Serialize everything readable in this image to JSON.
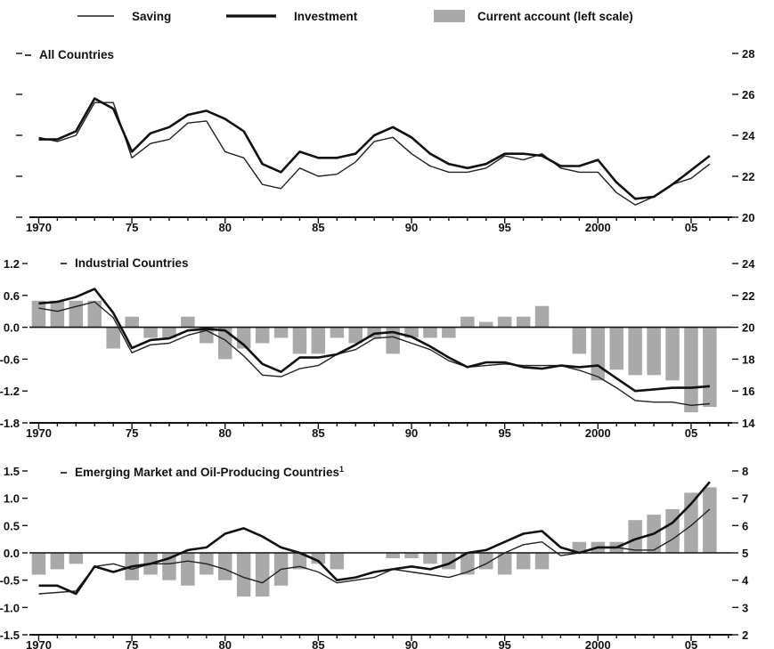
{
  "legend": {
    "saving": "Saving",
    "investment": "Investment",
    "current_account": "Current account (left scale)"
  },
  "colors": {
    "saving": "#222222",
    "investment": "#111111",
    "current_account": "#a9a9a9",
    "axis": "#111111"
  },
  "chart_data": [
    {
      "type": "line",
      "title": "All Countries",
      "x": [
        1970,
        1971,
        1972,
        1973,
        1974,
        1975,
        1976,
        1977,
        1978,
        1979,
        1980,
        1981,
        1982,
        1983,
        1984,
        1985,
        1986,
        1987,
        1988,
        1989,
        1990,
        1991,
        1992,
        1993,
        1994,
        1995,
        1996,
        1997,
        1998,
        1999,
        2000,
        2001,
        2002,
        2003,
        2004,
        2005,
        2006
      ],
      "xlim": [
        1969.5,
        2007.2
      ],
      "x_ticks": [
        1970,
        1975,
        1980,
        1985,
        1990,
        1995,
        2000,
        2005
      ],
      "x_tick_labels": [
        "1970",
        "75",
        "80",
        "85",
        "90",
        "95",
        "2000",
        "05"
      ],
      "yright_lim": [
        20,
        28
      ],
      "yright_ticks": [
        20,
        22,
        24,
        26,
        28
      ],
      "yright_tick_labels": [
        "20",
        "22",
        "24",
        "26",
        "28"
      ],
      "series": [
        {
          "name": "Saving",
          "axis": "right",
          "values": [
            23.9,
            23.7,
            24.0,
            25.6,
            25.6,
            22.9,
            23.6,
            23.8,
            24.6,
            24.7,
            23.2,
            22.9,
            21.6,
            21.4,
            22.4,
            22.0,
            22.1,
            22.7,
            23.7,
            23.9,
            23.1,
            22.5,
            22.2,
            22.2,
            22.4,
            23.0,
            22.8,
            23.1,
            22.4,
            22.2,
            22.2,
            21.2,
            20.6,
            21.0,
            21.6,
            21.9,
            22.6
          ]
        },
        {
          "name": "Investment",
          "axis": "right",
          "values": [
            23.8,
            23.8,
            24.2,
            25.8,
            25.3,
            23.2,
            24.1,
            24.4,
            25.0,
            25.2,
            24.8,
            24.2,
            22.6,
            22.2,
            23.2,
            22.9,
            22.9,
            23.1,
            24.0,
            24.4,
            23.9,
            23.1,
            22.6,
            22.4,
            22.6,
            23.1,
            23.1,
            23.0,
            22.5,
            22.5,
            22.8,
            21.7,
            20.9,
            21.0,
            21.6,
            22.3,
            23.0
          ]
        }
      ]
    },
    {
      "type": "bar",
      "title": "Industrial Countries",
      "x": [
        1970,
        1971,
        1972,
        1973,
        1974,
        1975,
        1976,
        1977,
        1978,
        1979,
        1980,
        1981,
        1982,
        1983,
        1984,
        1985,
        1986,
        1987,
        1988,
        1989,
        1990,
        1991,
        1992,
        1993,
        1994,
        1995,
        1996,
        1997,
        1998,
        1999,
        2000,
        2001,
        2002,
        2003,
        2004,
        2005,
        2006
      ],
      "xlim": [
        1969.5,
        2007.2
      ],
      "x_ticks": [
        1970,
        1975,
        1980,
        1985,
        1990,
        1995,
        2000,
        2005
      ],
      "x_tick_labels": [
        "1970",
        "75",
        "80",
        "85",
        "90",
        "95",
        "2000",
        "05"
      ],
      "yleft_lim": [
        -1.8,
        1.2
      ],
      "yleft_ticks": [
        -1.8,
        -1.2,
        -0.6,
        0.0,
        0.6,
        1.2
      ],
      "yleft_tick_labels": [
        "-1.8",
        "-1.2",
        "-0.6",
        "0.0",
        "0.6",
        "1.2"
      ],
      "yright_lim": [
        14,
        24
      ],
      "yright_ticks": [
        14,
        16,
        18,
        20,
        22,
        24
      ],
      "yright_tick_labels": [
        "14",
        "16",
        "18",
        "20",
        "22",
        "24"
      ],
      "series": [
        {
          "name": "Current account (left scale)",
          "axis": "left",
          "kind": "bar",
          "values": [
            0.5,
            0.5,
            0.5,
            0.5,
            -0.4,
            0.2,
            -0.2,
            -0.2,
            0.2,
            -0.3,
            -0.6,
            -0.4,
            -0.3,
            -0.2,
            -0.5,
            -0.5,
            -0.2,
            -0.3,
            -0.2,
            -0.5,
            -0.2,
            -0.2,
            -0.2,
            0.2,
            0.1,
            0.2,
            0.2,
            0.4,
            0.0,
            -0.5,
            -1.0,
            -0.8,
            -0.9,
            -0.9,
            -1.0,
            -1.6,
            -1.5
          ]
        },
        {
          "name": "Saving",
          "axis": "right",
          "kind": "line",
          "values": [
            21.2,
            21.0,
            21.3,
            21.6,
            20.6,
            18.4,
            18.9,
            19.0,
            19.5,
            19.8,
            19.2,
            18.2,
            17.0,
            16.9,
            17.4,
            17.6,
            18.3,
            18.6,
            19.3,
            19.4,
            19.0,
            18.6,
            17.9,
            17.5,
            17.6,
            17.7,
            17.6,
            17.6,
            17.6,
            17.3,
            16.9,
            16.2,
            15.4,
            15.3,
            15.3,
            15.1,
            15.2
          ]
        },
        {
          "name": "Investment",
          "axis": "right",
          "kind": "line",
          "values": [
            21.5,
            21.6,
            21.9,
            22.4,
            20.9,
            18.7,
            19.2,
            19.3,
            19.8,
            19.9,
            19.8,
            18.9,
            17.7,
            17.2,
            18.1,
            18.1,
            18.3,
            18.9,
            19.6,
            19.7,
            19.4,
            18.8,
            18.1,
            17.5,
            17.8,
            17.8,
            17.5,
            17.4,
            17.6,
            17.5,
            17.6,
            16.8,
            16.0,
            16.1,
            16.2,
            16.2,
            16.3
          ]
        }
      ]
    },
    {
      "type": "bar",
      "title": "Emerging Market and Oil-Producing Countries",
      "title_superscript": "1",
      "x": [
        1970,
        1971,
        1972,
        1973,
        1974,
        1975,
        1976,
        1977,
        1978,
        1979,
        1980,
        1981,
        1982,
        1983,
        1984,
        1985,
        1986,
        1987,
        1988,
        1989,
        1990,
        1991,
        1992,
        1993,
        1994,
        1995,
        1996,
        1997,
        1998,
        1999,
        2000,
        2001,
        2002,
        2003,
        2004,
        2005,
        2006
      ],
      "xlim": [
        1969.5,
        2007.2
      ],
      "x_ticks": [
        1970,
        1975,
        1980,
        1985,
        1990,
        1995,
        2000,
        2005
      ],
      "x_tick_labels": [
        "1970",
        "75",
        "80",
        "85",
        "90",
        "95",
        "2000",
        "05"
      ],
      "yleft_lim": [
        -1.5,
        1.5
      ],
      "yleft_ticks": [
        -1.5,
        -1.0,
        -0.5,
        0.0,
        0.5,
        1.0,
        1.5
      ],
      "yleft_tick_labels": [
        "-1.5",
        "-1.0",
        "-0.5",
        "0.0",
        "0.5",
        "1.0",
        "1.5"
      ],
      "yright_lim": [
        2,
        8
      ],
      "yright_ticks": [
        2,
        3,
        4,
        5,
        6,
        7,
        8
      ],
      "yright_tick_labels": [
        "2",
        "3",
        "4",
        "5",
        "6",
        "7",
        "8"
      ],
      "series": [
        {
          "name": "Current account (left scale)",
          "axis": "left",
          "kind": "bar",
          "values": [
            -0.4,
            -0.3,
            -0.2,
            0.0,
            0.0,
            -0.5,
            -0.4,
            -0.5,
            -0.6,
            -0.4,
            -0.5,
            -0.8,
            -0.8,
            -0.6,
            -0.3,
            -0.2,
            -0.3,
            0.0,
            0.0,
            -0.1,
            -0.1,
            -0.2,
            -0.3,
            -0.4,
            -0.3,
            -0.4,
            -0.3,
            -0.3,
            0.0,
            0.2,
            0.2,
            0.2,
            0.6,
            0.7,
            0.8,
            1.1,
            1.2
          ]
        },
        {
          "name": "Saving",
          "axis": "right",
          "kind": "line",
          "values": [
            3.5,
            3.55,
            3.6,
            4.5,
            4.6,
            4.4,
            4.6,
            4.6,
            4.7,
            4.6,
            4.4,
            4.1,
            3.9,
            4.4,
            4.5,
            4.3,
            3.9,
            4.0,
            4.1,
            4.4,
            4.3,
            4.2,
            4.1,
            4.3,
            4.6,
            5.0,
            5.3,
            5.4,
            4.9,
            5.0,
            5.2,
            5.2,
            5.1,
            5.1,
            5.5,
            6.0,
            6.6
          ]
        },
        {
          "name": "Investment",
          "axis": "right",
          "kind": "line",
          "values": [
            3.8,
            3.8,
            3.5,
            4.5,
            4.3,
            4.5,
            4.6,
            4.8,
            5.1,
            5.2,
            5.7,
            5.9,
            5.6,
            5.2,
            5.0,
            4.7,
            4.0,
            4.1,
            4.3,
            4.4,
            4.5,
            4.4,
            4.6,
            5.0,
            5.1,
            5.4,
            5.7,
            5.8,
            5.2,
            5.0,
            5.2,
            5.2,
            5.5,
            5.7,
            6.1,
            6.8,
            7.6
          ]
        }
      ]
    }
  ]
}
